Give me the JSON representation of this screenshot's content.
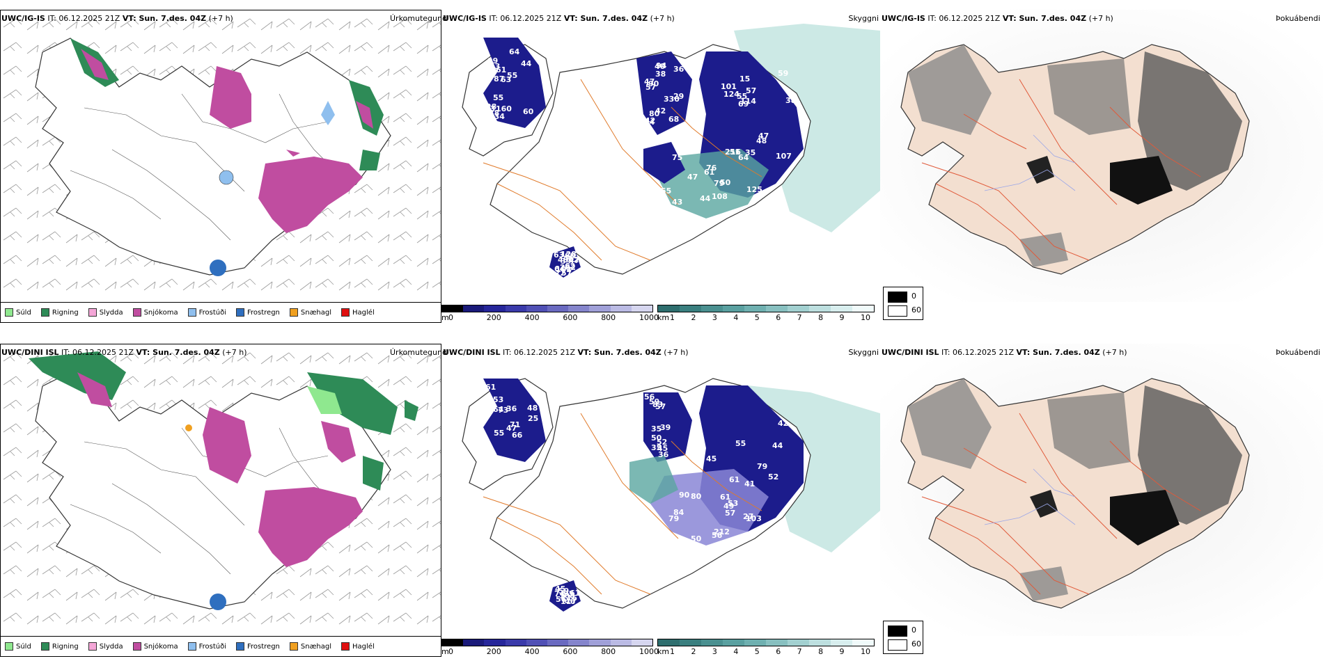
{
  "rows": [
    {
      "precip": {
        "title_model": "UWC/IG-IS",
        "title_it": " IT: 06.12.2025 21Z ",
        "title_vt_label": "VT: Sun. 7.des. 04Z",
        "title_lead": " (+7 h)",
        "right_label": "Úrkomutegund"
      },
      "cloud": {
        "title_model": "UWC/IG-IS",
        "title_it": " IT: 06.12.2025 21Z ",
        "title_vt_label": "VT: Sun. 7.des. 04Z",
        "title_lead": " (+7 h)",
        "right_label": "Skyggni",
        "numbers": [
          "60",
          "57",
          "59",
          "47",
          "46",
          "38",
          "38",
          "57",
          "55",
          "48",
          "53",
          "80",
          "15",
          "76",
          "62",
          "99",
          "94",
          "38",
          "79",
          "62",
          "63",
          "42",
          "69",
          "75",
          "60",
          "55",
          "68",
          "107",
          "50",
          "57",
          "61",
          "90",
          "48",
          "43",
          "47",
          "55",
          "42",
          "64",
          "61",
          "64",
          "44",
          "36",
          "47",
          "108",
          "103",
          "134",
          "84",
          "35",
          "51",
          "128",
          "87",
          "47",
          "101",
          "216",
          "72",
          "64",
          "40",
          "114",
          "125",
          "262",
          "160",
          "330",
          "124",
          "52",
          "63",
          "43",
          "29",
          "55",
          "44",
          "39",
          "28"
        ]
      },
      "fog": {
        "title_model": "UWC/IG-IS",
        "title_it": " IT: 06.12.2025 21Z ",
        "title_vt_label": "VT: Sun. 7.des. 04Z",
        "title_lead": " (+7 h)",
        "right_label": "Þokuábendi"
      }
    },
    {
      "precip": {
        "title_model": "UWC/DINI ISL",
        "title_it": " IT: 06.12.2025 21Z ",
        "title_vt_label": "VT: Sun. 7.des. 04Z",
        "title_lead": " (+7 h)",
        "right_label": "Úrkomutegund"
      },
      "cloud": {
        "title_model": "UWC/DINI ISL",
        "title_it": " IT: 06.12.2025 21Z ",
        "title_vt_label": "VT: Sun. 7.des. 04Z",
        "title_lead": " (+7 h)",
        "right_label": "Skyggni",
        "numbers": [
          "61",
          "56",
          "45",
          "41",
          "61",
          "66",
          "57",
          "61",
          "13",
          "46",
          "55",
          "39",
          "57",
          "79",
          "117",
          "73",
          "52",
          "61",
          "90",
          "108",
          "48",
          "45",
          "53",
          "84",
          "56",
          "47",
          "50",
          "52",
          "50",
          "59",
          "71",
          "83",
          "42",
          "103",
          "116",
          "64",
          "59",
          "55",
          "212",
          "95",
          "53",
          "36",
          "79",
          "80",
          "45",
          "36",
          "35",
          "44",
          "56",
          "74",
          "25",
          "35",
          "49",
          "27"
        ]
      },
      "fog": {
        "title_model": "UWC/DINI ISL",
        "title_it": " IT: 06.12.2025 21Z ",
        "title_vt_label": "VT: Sun. 7.des. 04Z",
        "title_lead": " (+7 h)",
        "right_label": "Þokuábendi"
      }
    }
  ],
  "precip_legend": [
    {
      "label": "Súld",
      "color": "#8fe88f"
    },
    {
      "label": "Rigning",
      "color": "#2e8b57"
    },
    {
      "label": "Slydda",
      "color": "#f4a6d7"
    },
    {
      "label": "Snjókoma",
      "color": "#c04da0"
    },
    {
      "label": "Frostúði",
      "color": "#8fbfee"
    },
    {
      "label": "Frostregn",
      "color": "#2f6fbf"
    },
    {
      "label": "Snæhagl",
      "color": "#f0a020"
    },
    {
      "label": "Haglél",
      "color": "#e01010"
    }
  ],
  "height_colorbar": {
    "unit": "m",
    "ticks": [
      "0",
      "200",
      "400",
      "600",
      "800",
      "1000"
    ],
    "colors": [
      "#000000",
      "#1a1a7a",
      "#26269a",
      "#3a3aaa",
      "#5050b5",
      "#6a6ac0",
      "#8585cc",
      "#a0a0d8",
      "#bbbbe4",
      "#d6d6ef"
    ]
  },
  "vis_colorbar": {
    "unit": "km",
    "ticks": [
      "1",
      "2",
      "3",
      "4",
      "5",
      "6",
      "7",
      "8",
      "9",
      "10"
    ],
    "colors": [
      "#2e6e6e",
      "#3a7f7f",
      "#4a9090",
      "#5aa0a0",
      "#6fb0b0",
      "#88c0c0",
      "#a2d0d0",
      "#bddfdf",
      "#d8eeee",
      "#f0fafa"
    ]
  },
  "fog_legend": {
    "items": [
      {
        "label": "0",
        "color": "#000000"
      },
      {
        "label": "60",
        "color": "#ffffff"
      }
    ]
  },
  "colors": {
    "land_fog": "#f3dfd0",
    "roads": "#e07a2a",
    "rivers": "#9aa6e8",
    "cloud_dark": "#1c1c8c",
    "cloud_teal": "#5aa6a0"
  }
}
